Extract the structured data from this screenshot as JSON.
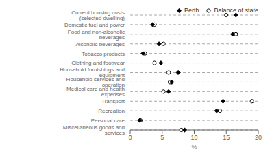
{
  "chart_data": {
    "type": "scatter",
    "orientation": "horizontal",
    "categories": [
      "Current housing costs (selected dwelling)",
      "Domestic fuel and power",
      "Food and non-alcoholic beverages",
      "Alcoholic beverages",
      "Tobacco products",
      "Clothing and footwear",
      "Household furnishings and equipment",
      "Household services and operation",
      "Medical care and health expenses",
      "Transport",
      "Recreation",
      "Personal care",
      "Miscellaneous goods and services"
    ],
    "series": [
      {
        "name": "Perth",
        "color": "#000000",
        "marker": "diamond",
        "values": [
          16.5,
          3.5,
          16.0,
          4.5,
          2.0,
          4.8,
          7.5,
          6.5,
          6.0,
          14.5,
          13.5,
          1.5,
          8.5
        ]
      },
      {
        "name": "Balance of state",
        "color": "#000000",
        "marker": "circle",
        "values": [
          15.0,
          3.8,
          16.5,
          5.2,
          2.3,
          3.8,
          6.0,
          6.2,
          5.2,
          19.0,
          14.0,
          1.6,
          8.0
        ]
      }
    ],
    "x_label": "%",
    "xlim": [
      0,
      20
    ],
    "xticks": [
      0,
      5,
      10,
      15,
      20
    ],
    "grid": true,
    "legend": "upper right"
  }
}
